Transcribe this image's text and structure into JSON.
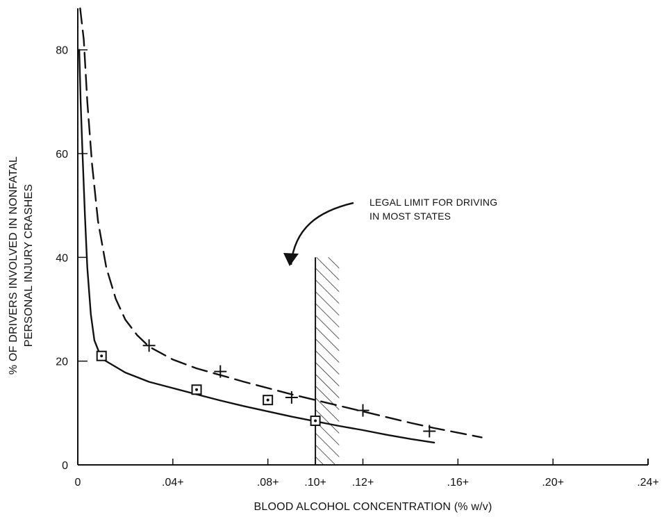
{
  "chart_data": {
    "type": "line",
    "title": "",
    "xlabel": "BLOOD ALCOHOL CONCENTRATION (% w/v)",
    "ylabel_lines": [
      "% OF DRIVERS INVOLVED IN NONFATAL",
      "PERSONAL INJURY CRASHES"
    ],
    "xlim": [
      0,
      0.24
    ],
    "ylim": [
      0,
      88
    ],
    "x_ticks": [
      {
        "value": 0,
        "label": "0"
      },
      {
        "value": 0.04,
        "label": ".04+"
      },
      {
        "value": 0.08,
        "label": ".08+"
      },
      {
        "value": 0.1,
        "label": ".10+"
      },
      {
        "value": 0.12,
        "label": ".12+"
      },
      {
        "value": 0.16,
        "label": ".16+"
      },
      {
        "value": 0.2,
        "label": ".20+"
      },
      {
        "value": 0.24,
        "label": ".24+"
      }
    ],
    "y_ticks": [
      {
        "value": 0,
        "label": "0"
      },
      {
        "value": 20,
        "label": "20"
      },
      {
        "value": 40,
        "label": "40"
      },
      {
        "value": 60,
        "label": "60"
      },
      {
        "value": 80,
        "label": "80"
      }
    ],
    "grid": false,
    "legend": "none",
    "series": [
      {
        "style": "dashed",
        "marker": "plus",
        "curve": [
          {
            "x": 0.001,
            "y": 88.0
          },
          {
            "x": 0.0025,
            "y": 82.0
          },
          {
            "x": 0.004,
            "y": 70.0
          },
          {
            "x": 0.006,
            "y": 58.0
          },
          {
            "x": 0.0085,
            "y": 47.0
          },
          {
            "x": 0.012,
            "y": 38.0
          },
          {
            "x": 0.016,
            "y": 32.0
          },
          {
            "x": 0.02,
            "y": 28.0
          },
          {
            "x": 0.025,
            "y": 25.0
          },
          {
            "x": 0.03,
            "y": 22.8
          },
          {
            "x": 0.04,
            "y": 20.3
          },
          {
            "x": 0.05,
            "y": 18.6
          },
          {
            "x": 0.06,
            "y": 17.3
          },
          {
            "x": 0.07,
            "y": 16.0
          },
          {
            "x": 0.08,
            "y": 14.8
          },
          {
            "x": 0.09,
            "y": 13.6
          },
          {
            "x": 0.1,
            "y": 12.5
          },
          {
            "x": 0.11,
            "y": 11.4
          },
          {
            "x": 0.12,
            "y": 10.3
          },
          {
            "x": 0.13,
            "y": 9.2
          },
          {
            "x": 0.14,
            "y": 8.1
          },
          {
            "x": 0.15,
            "y": 7.1
          },
          {
            "x": 0.16,
            "y": 6.2
          },
          {
            "x": 0.17,
            "y": 5.3
          }
        ],
        "points": [
          {
            "x": 0.03,
            "y": 23.0
          },
          {
            "x": 0.06,
            "y": 18.0
          },
          {
            "x": 0.09,
            "y": 13.0
          },
          {
            "x": 0.12,
            "y": 10.5
          },
          {
            "x": 0.148,
            "y": 6.5
          }
        ]
      },
      {
        "style": "solid",
        "marker": "square-dot",
        "curve": [
          {
            "x": 0.0006,
            "y": 80.0
          },
          {
            "x": 0.0012,
            "y": 70.0
          },
          {
            "x": 0.002,
            "y": 60.0
          },
          {
            "x": 0.003,
            "y": 48.0
          },
          {
            "x": 0.004,
            "y": 38.0
          },
          {
            "x": 0.0055,
            "y": 29.0
          },
          {
            "x": 0.007,
            "y": 24.0
          },
          {
            "x": 0.01,
            "y": 20.5
          },
          {
            "x": 0.02,
            "y": 17.8
          },
          {
            "x": 0.03,
            "y": 16.0
          },
          {
            "x": 0.04,
            "y": 14.8
          },
          {
            "x": 0.05,
            "y": 13.6
          },
          {
            "x": 0.06,
            "y": 12.4
          },
          {
            "x": 0.07,
            "y": 11.3
          },
          {
            "x": 0.08,
            "y": 10.3
          },
          {
            "x": 0.09,
            "y": 9.3
          },
          {
            "x": 0.1,
            "y": 8.4
          },
          {
            "x": 0.11,
            "y": 7.5
          },
          {
            "x": 0.12,
            "y": 6.7
          },
          {
            "x": 0.13,
            "y": 5.8
          },
          {
            "x": 0.14,
            "y": 5.0
          },
          {
            "x": 0.15,
            "y": 4.3
          }
        ],
        "points": [
          {
            "x": 0.01,
            "y": 21.0
          },
          {
            "x": 0.05,
            "y": 14.5
          },
          {
            "x": 0.08,
            "y": 12.5
          },
          {
            "x": 0.1,
            "y": 8.5
          }
        ]
      }
    ],
    "legal_limit_band": {
      "x_start": 0.1,
      "x_end": 0.11,
      "y_top": 40
    },
    "annotation": {
      "lines": [
        "LEGAL LIMIT FOR DRIVING",
        "IN MOST STATES"
      ]
    },
    "colors": {
      "ink": "#111111",
      "background": "#ffffff"
    }
  }
}
